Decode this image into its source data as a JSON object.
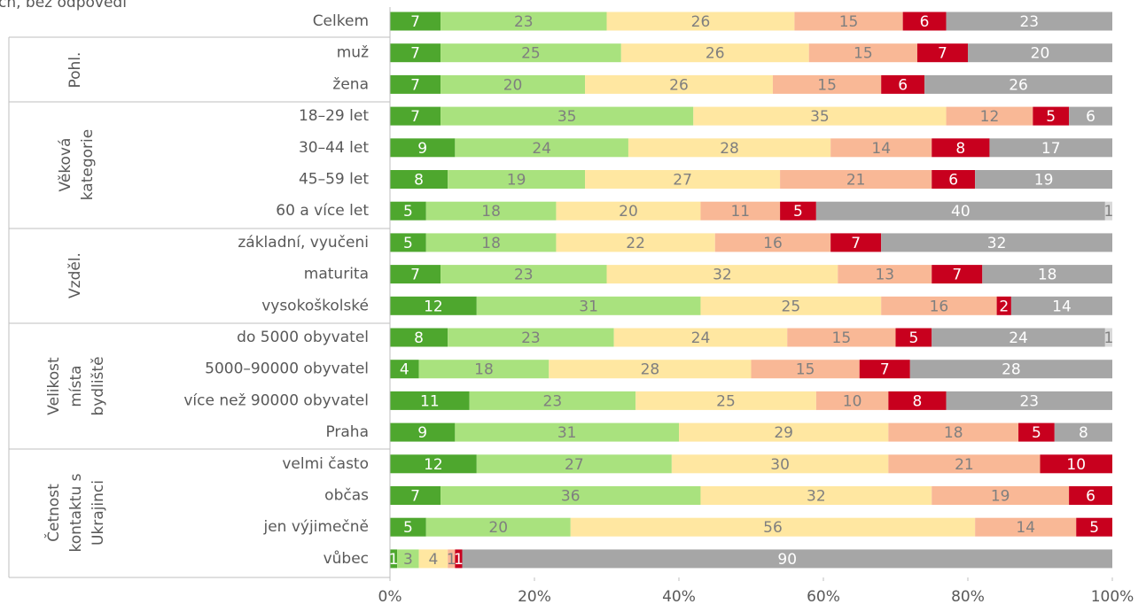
{
  "chart_data": {
    "type": "stacked-barh",
    "note_text": "ch, bez odpovědi",
    "categories": [
      "Celkem",
      "muž",
      "žena",
      "18–29 let",
      "30–44 let",
      "45–59 let",
      "60 a více let",
      "základní, vyučeni",
      "maturita",
      "vysokoškolské",
      "do 5000 obyvatel",
      "5000–90000 obyvatel",
      "více než 90000 obyvatel",
      "Praha",
      "velmi často",
      "občas",
      "jen výjimečně",
      "vůbec"
    ],
    "groups": [
      [
        "Pohl."
      ],
      [
        "Věková",
        "kategorie"
      ],
      [
        "Vzděl."
      ],
      [
        "Velikost",
        "místa",
        "bydliště"
      ],
      [
        "Četnost",
        "kontaktu s",
        "Ukrajinci"
      ]
    ],
    "series": [
      {
        "color": "#4ea72e",
        "values": [
          7,
          7,
          7,
          7,
          9,
          8,
          5,
          5,
          7,
          12,
          8,
          4,
          11,
          9,
          12,
          7,
          5,
          1
        ]
      },
      {
        "color": "#a9e27e",
        "values": [
          23,
          25,
          20,
          35,
          24,
          19,
          18,
          18,
          23,
          31,
          23,
          18,
          23,
          31,
          27,
          36,
          20,
          3
        ]
      },
      {
        "color": "#ffe7a1",
        "values": [
          26,
          26,
          26,
          35,
          28,
          27,
          20,
          22,
          32,
          25,
          24,
          28,
          25,
          29,
          30,
          32,
          56,
          4
        ]
      },
      {
        "color": "#f9b896",
        "values": [
          15,
          15,
          15,
          12,
          14,
          21,
          11,
          16,
          13,
          16,
          15,
          15,
          10,
          18,
          21,
          19,
          14,
          1
        ]
      },
      {
        "color": "#c8001e",
        "values": [
          6,
          7,
          6,
          5,
          8,
          6,
          5,
          7,
          7,
          2,
          5,
          7,
          8,
          5,
          10,
          6,
          5,
          1
        ]
      },
      {
        "color": "#a6a6a6",
        "values": [
          23,
          20,
          26,
          6,
          17,
          19,
          40,
          32,
          18,
          14,
          24,
          28,
          23,
          8,
          null,
          null,
          null,
          90
        ]
      },
      {
        "color": "#d9d9d9",
        "values": [
          null,
          null,
          null,
          null,
          null,
          null,
          1,
          null,
          null,
          null,
          1,
          null,
          null,
          null,
          null,
          null,
          null,
          null
        ]
      }
    ],
    "xlim": [
      0,
      100
    ],
    "xticks": [
      {
        "value": 0,
        "label": "0%"
      },
      {
        "value": 20,
        "label": "20%"
      },
      {
        "value": 40,
        "label": "40%"
      },
      {
        "value": 60,
        "label": "60%"
      },
      {
        "value": 80,
        "label": "80%"
      },
      {
        "value": 100,
        "label": "100%"
      }
    ]
  }
}
